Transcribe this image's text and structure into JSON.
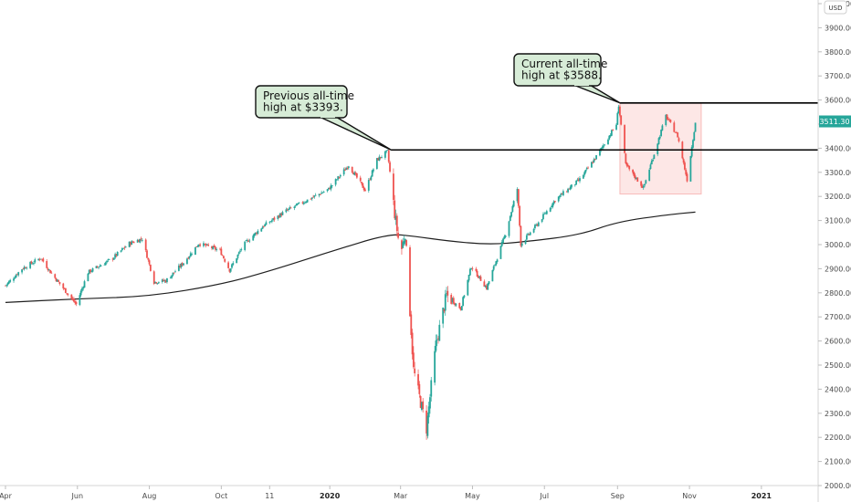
{
  "chart_data": {
    "type": "candlestick",
    "title": "",
    "currency": "USD",
    "y_ticks": [
      "2000.00",
      "2100.00",
      "2200.00",
      "2300.00",
      "2400.00",
      "2500.00",
      "2600.00",
      "2700.00",
      "2800.00",
      "2900.00",
      "3000.00",
      "3100.00",
      "3200.00",
      "3300.00",
      "3400.00",
      "3500.00",
      "3600.00",
      "3700.00",
      "3800.00",
      "3900.00",
      "4000.00"
    ],
    "ylim": [
      2000,
      4000
    ],
    "x_range": [
      "2019-04-01",
      "2021-02-15"
    ],
    "x_ticks": [
      {
        "label": "Apr",
        "date": "2019-04-01"
      },
      {
        "label": "Jun",
        "date": "2019-06-01"
      },
      {
        "label": "Aug",
        "date": "2019-08-01"
      },
      {
        "label": "Oct",
        "date": "2019-10-01"
      },
      {
        "label": "11",
        "date": "2019-11-11"
      },
      {
        "label": "2020",
        "date": "2020-01-01",
        "bold": true
      },
      {
        "label": "Mar",
        "date": "2020-03-01"
      },
      {
        "label": "May",
        "date": "2020-05-01"
      },
      {
        "label": "Jul",
        "date": "2020-07-01"
      },
      {
        "label": "Sep",
        "date": "2020-09-01"
      },
      {
        "label": "Nov",
        "date": "2020-11-01"
      },
      {
        "label": "2021",
        "date": "2021-01-01",
        "bold": true
      }
    ],
    "current_price": "3511.30",
    "up_color": "#26a69a",
    "down_color": "#ef5350",
    "price_path": [
      [
        "2019-04-01",
        2830
      ],
      [
        "2019-04-15",
        2900
      ],
      [
        "2019-05-01",
        2945
      ],
      [
        "2019-05-10",
        2880
      ],
      [
        "2019-05-31",
        2752
      ],
      [
        "2019-06-10",
        2885
      ],
      [
        "2019-06-30",
        2940
      ],
      [
        "2019-07-15",
        3005
      ],
      [
        "2019-07-26",
        3025
      ],
      [
        "2019-08-05",
        2845
      ],
      [
        "2019-08-15",
        2850
      ],
      [
        "2019-08-30",
        2925
      ],
      [
        "2019-09-12",
        3005
      ],
      [
        "2019-09-30",
        2975
      ],
      [
        "2019-10-08",
        2895
      ],
      [
        "2019-10-20",
        3000
      ],
      [
        "2019-11-05",
        3075
      ],
      [
        "2019-11-25",
        3140
      ],
      [
        "2019-12-15",
        3190
      ],
      [
        "2019-12-31",
        3230
      ],
      [
        "2020-01-17",
        3330
      ],
      [
        "2020-01-31",
        3225
      ],
      [
        "2020-02-10",
        3352
      ],
      [
        "2020-02-19",
        3386
      ],
      [
        "2020-02-25",
        3130
      ],
      [
        "2020-03-01",
        2960
      ],
      [
        "2020-03-05",
        3050
      ],
      [
        "2020-03-12",
        2480
      ],
      [
        "2020-03-16",
        2390
      ],
      [
        "2020-03-23",
        2237
      ],
      [
        "2020-03-31",
        2585
      ],
      [
        "2020-04-09",
        2790
      ],
      [
        "2020-04-21",
        2735
      ],
      [
        "2020-04-30",
        2910
      ],
      [
        "2020-05-13",
        2820
      ],
      [
        "2020-05-29",
        3045
      ],
      [
        "2020-06-08",
        3232
      ],
      [
        "2020-06-11",
        3002
      ],
      [
        "2020-06-25",
        3085
      ],
      [
        "2020-07-10",
        3185
      ],
      [
        "2020-07-31",
        3270
      ],
      [
        "2020-08-15",
        3372
      ],
      [
        "2020-08-31",
        3500
      ],
      [
        "2020-09-02",
        3580
      ],
      [
        "2020-09-08",
        3330
      ],
      [
        "2020-09-23",
        3236
      ],
      [
        "2020-10-12",
        3534
      ],
      [
        "2020-10-22",
        3450
      ],
      [
        "2020-10-30",
        3270
      ],
      [
        "2020-11-04",
        3440
      ],
      [
        "2020-11-06",
        3510
      ]
    ],
    "moving_average": [
      [
        "2019-04-01",
        2760
      ],
      [
        "2019-06-01",
        2775
      ],
      [
        "2019-08-01",
        2785
      ],
      [
        "2019-10-01",
        2835
      ],
      [
        "2019-11-11",
        2890
      ],
      [
        "2020-01-01",
        2970
      ],
      [
        "2020-02-20",
        3045
      ],
      [
        "2020-03-12",
        3035
      ],
      [
        "2020-04-10",
        3015
      ],
      [
        "2020-05-15",
        3000
      ],
      [
        "2020-06-15",
        3012
      ],
      [
        "2020-07-31",
        3040
      ],
      [
        "2020-09-01",
        3095
      ],
      [
        "2020-10-15",
        3125
      ],
      [
        "2020-11-06",
        3135
      ]
    ],
    "levels": [
      {
        "name": "previous-high",
        "value": 3393,
        "from": "2020-02-22",
        "to": "2021-02-15"
      },
      {
        "name": "current-high",
        "value": 3588,
        "from": "2020-09-03",
        "to": "2021-02-15"
      }
    ],
    "range_box": {
      "from": "2020-09-03",
      "to": "2020-11-11",
      "low": 3210,
      "high": 3588
    },
    "annotations": [
      {
        "name": "previous-high-callout",
        "lines": [
          "Previous all-time",
          "high at $3393."
        ],
        "point_date": "2020-02-22",
        "point_value": 3393
      },
      {
        "name": "current-high-callout",
        "lines": [
          "Current all-time",
          "high at $3588."
        ],
        "point_date": "2020-09-03",
        "point_value": 3588
      }
    ]
  }
}
